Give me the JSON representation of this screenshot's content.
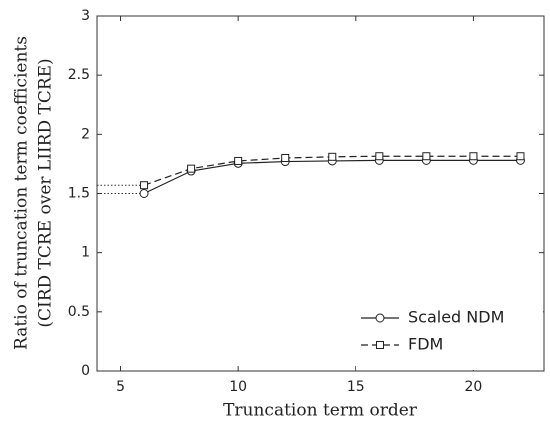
{
  "chart_data": {
    "type": "line",
    "xlabel": "Truncation term order",
    "ylabel": [
      "Ratio of truncation term coefficients",
      "(CIRD TCRE over LIIRD TCRE)"
    ],
    "x": [
      6,
      8,
      10,
      12,
      14,
      16,
      18,
      20,
      22
    ],
    "series": [
      {
        "name": "Scaled NDM",
        "color": "#222222",
        "line_style": "solid",
        "marker": "circle",
        "values": [
          1.5,
          1.69,
          1.755,
          1.77,
          1.775,
          1.78,
          1.78,
          1.78,
          1.78
        ]
      },
      {
        "name": "FDM",
        "color": "#222222",
        "line_style": "dashed",
        "marker": "square",
        "values": [
          1.57,
          1.71,
          1.775,
          1.8,
          1.81,
          1.815,
          1.815,
          1.815,
          1.815
        ]
      }
    ],
    "xlim": [
      4,
      23
    ],
    "xticks": [
      5,
      10,
      15,
      20
    ],
    "ylim": [
      0,
      3
    ],
    "yticks": [
      0,
      0.5,
      1,
      1.5,
      2,
      2.5,
      3
    ],
    "legend": "lower right"
  }
}
